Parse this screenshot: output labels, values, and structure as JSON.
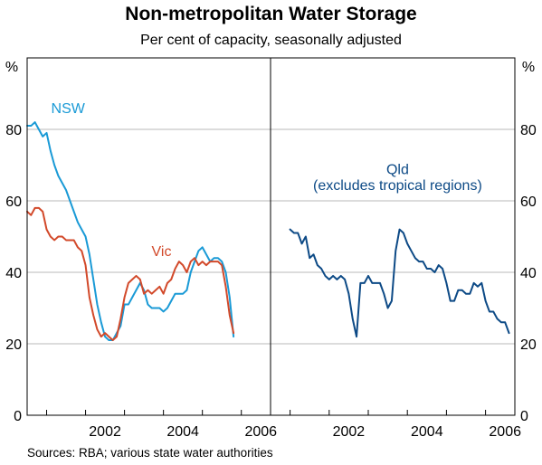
{
  "title": "Non-metropolitan Water Storage",
  "subtitle": "Per cent of capacity, seasonally adjusted",
  "source": "Sources: RBA; various state water authorities",
  "colors": {
    "nsw": "#1a9ad6",
    "vic": "#d2492a",
    "qld": "#0d4a86",
    "grid": "#b8b8b8",
    "axis": "#000000"
  },
  "chart_data": {
    "type": "line",
    "y_unit_left": "%",
    "y_unit_right": "%",
    "ylim": [
      0,
      100
    ],
    "y_ticks": [
      "0",
      "20",
      "40",
      "60",
      "80"
    ],
    "xlim": [
      2000.5,
      2006.75
    ],
    "grid": true,
    "panels": [
      {
        "x_ticks": [
          "2002",
          "2004",
          "2006"
        ],
        "series": [
          {
            "name": "NSW",
            "color_key": "nsw",
            "points": [
              [
                2000.5,
                81
              ],
              [
                2000.6,
                81
              ],
              [
                2000.7,
                82
              ],
              [
                2000.8,
                80
              ],
              [
                2000.9,
                78
              ],
              [
                2001.0,
                79
              ],
              [
                2001.1,
                74
              ],
              [
                2001.2,
                70
              ],
              [
                2001.3,
                67
              ],
              [
                2001.4,
                65
              ],
              [
                2001.5,
                63
              ],
              [
                2001.6,
                60
              ],
              [
                2001.7,
                57
              ],
              [
                2001.8,
                54
              ],
              [
                2001.9,
                52
              ],
              [
                2002.0,
                50
              ],
              [
                2002.1,
                45
              ],
              [
                2002.2,
                38
              ],
              [
                2002.3,
                31
              ],
              [
                2002.4,
                26
              ],
              [
                2002.5,
                22
              ],
              [
                2002.6,
                21
              ],
              [
                2002.7,
                21
              ],
              [
                2002.8,
                23
              ],
              [
                2002.9,
                25
              ],
              [
                2003.0,
                31
              ],
              [
                2003.1,
                31
              ],
              [
                2003.2,
                33
              ],
              [
                2003.3,
                35
              ],
              [
                2003.4,
                37
              ],
              [
                2003.5,
                35
              ],
              [
                2003.6,
                31
              ],
              [
                2003.7,
                30
              ],
              [
                2003.8,
                30
              ],
              [
                2003.9,
                30
              ],
              [
                2004.0,
                29
              ],
              [
                2004.1,
                30
              ],
              [
                2004.2,
                32
              ],
              [
                2004.3,
                34
              ],
              [
                2004.4,
                34
              ],
              [
                2004.5,
                34
              ],
              [
                2004.6,
                35
              ],
              [
                2004.7,
                40
              ],
              [
                2004.8,
                43
              ],
              [
                2004.9,
                46
              ],
              [
                2005.0,
                47
              ],
              [
                2005.1,
                45
              ],
              [
                2005.2,
                43
              ],
              [
                2005.3,
                44
              ],
              [
                2005.4,
                44
              ],
              [
                2005.5,
                43
              ],
              [
                2005.6,
                40
              ],
              [
                2005.7,
                33
              ],
              [
                2005.8,
                22
              ]
            ]
          },
          {
            "name": "Vic",
            "color_key": "vic",
            "points": [
              [
                2000.5,
                57
              ],
              [
                2000.6,
                56
              ],
              [
                2000.7,
                58
              ],
              [
                2000.8,
                58
              ],
              [
                2000.9,
                57
              ],
              [
                2001.0,
                52
              ],
              [
                2001.1,
                50
              ],
              [
                2001.2,
                49
              ],
              [
                2001.3,
                50
              ],
              [
                2001.4,
                50
              ],
              [
                2001.5,
                49
              ],
              [
                2001.6,
                49
              ],
              [
                2001.7,
                49
              ],
              [
                2001.8,
                47
              ],
              [
                2001.9,
                46
              ],
              [
                2002.0,
                42
              ],
              [
                2002.1,
                33
              ],
              [
                2002.2,
                28
              ],
              [
                2002.3,
                24
              ],
              [
                2002.4,
                22
              ],
              [
                2002.5,
                23
              ],
              [
                2002.6,
                22
              ],
              [
                2002.7,
                21
              ],
              [
                2002.8,
                22
              ],
              [
                2002.9,
                27
              ],
              [
                2003.0,
                33
              ],
              [
                2003.1,
                37
              ],
              [
                2003.2,
                38
              ],
              [
                2003.3,
                39
              ],
              [
                2003.4,
                38
              ],
              [
                2003.5,
                34
              ],
              [
                2003.6,
                35
              ],
              [
                2003.7,
                34
              ],
              [
                2003.8,
                35
              ],
              [
                2003.9,
                36
              ],
              [
                2004.0,
                34
              ],
              [
                2004.1,
                37
              ],
              [
                2004.2,
                38
              ],
              [
                2004.3,
                41
              ],
              [
                2004.4,
                43
              ],
              [
                2004.5,
                42
              ],
              [
                2004.6,
                40
              ],
              [
                2004.7,
                43
              ],
              [
                2004.8,
                44
              ],
              [
                2004.9,
                42
              ],
              [
                2005.0,
                43
              ],
              [
                2005.1,
                42
              ],
              [
                2005.2,
                43
              ],
              [
                2005.3,
                43
              ],
              [
                2005.4,
                43
              ],
              [
                2005.5,
                42
              ],
              [
                2005.6,
                36
              ],
              [
                2005.7,
                28
              ],
              [
                2005.8,
                23
              ]
            ]
          }
        ],
        "annotations": [
          {
            "text": "NSW",
            "color_key": "nsw",
            "x": 2001.55,
            "y": 84.5
          },
          {
            "text": "Vic",
            "color_key": "vic",
            "x": 2003.95,
            "y": 44.5
          }
        ]
      },
      {
        "x_ticks": [
          "2002",
          "2004",
          "2006"
        ],
        "series": [
          {
            "name": "Qld",
            "color_key": "qld",
            "points": [
              [
                2001.0,
                52
              ],
              [
                2001.1,
                51
              ],
              [
                2001.2,
                51
              ],
              [
                2001.3,
                48
              ],
              [
                2001.4,
                50
              ],
              [
                2001.5,
                44
              ],
              [
                2001.6,
                45
              ],
              [
                2001.7,
                42
              ],
              [
                2001.8,
                41
              ],
              [
                2001.9,
                39
              ],
              [
                2002.0,
                38
              ],
              [
                2002.1,
                39
              ],
              [
                2002.2,
                38
              ],
              [
                2002.3,
                39
              ],
              [
                2002.4,
                38
              ],
              [
                2002.5,
                34
              ],
              [
                2002.6,
                27
              ],
              [
                2002.7,
                22
              ],
              [
                2002.8,
                37
              ],
              [
                2002.9,
                37
              ],
              [
                2003.0,
                39
              ],
              [
                2003.1,
                37
              ],
              [
                2003.2,
                37
              ],
              [
                2003.3,
                37
              ],
              [
                2003.4,
                34
              ],
              [
                2003.5,
                30
              ],
              [
                2003.6,
                32
              ],
              [
                2003.7,
                46
              ],
              [
                2003.8,
                52
              ],
              [
                2003.9,
                51
              ],
              [
                2004.0,
                48
              ],
              [
                2004.1,
                46
              ],
              [
                2004.2,
                44
              ],
              [
                2004.3,
                43
              ],
              [
                2004.4,
                43
              ],
              [
                2004.5,
                41
              ],
              [
                2004.6,
                41
              ],
              [
                2004.7,
                40
              ],
              [
                2004.8,
                42
              ],
              [
                2004.9,
                41
              ],
              [
                2005.0,
                37
              ],
              [
                2005.1,
                32
              ],
              [
                2005.2,
                32
              ],
              [
                2005.3,
                35
              ],
              [
                2005.4,
                35
              ],
              [
                2005.5,
                34
              ],
              [
                2005.6,
                34
              ],
              [
                2005.7,
                37
              ],
              [
                2005.8,
                36
              ],
              [
                2005.9,
                37
              ],
              [
                2006.0,
                32
              ],
              [
                2006.1,
                29
              ],
              [
                2006.2,
                29
              ],
              [
                2006.3,
                27
              ],
              [
                2006.4,
                26
              ],
              [
                2006.5,
                26
              ],
              [
                2006.6,
                23
              ]
            ]
          }
        ],
        "annotations": [
          {
            "text": "Qld",
            "color_key": "qld",
            "x": 2003.75,
            "y": 67.5
          },
          {
            "text": "(excludes tropical regions)",
            "color_key": "qld",
            "x": 2003.75,
            "y": 63.0
          }
        ]
      }
    ]
  }
}
